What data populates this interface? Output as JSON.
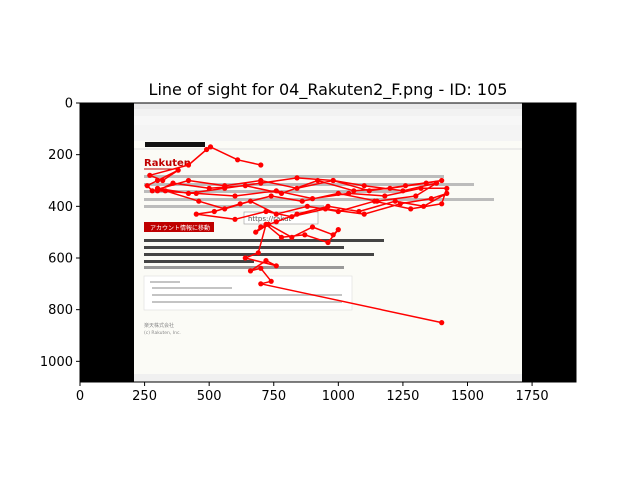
{
  "chart_data": {
    "type": "scatter",
    "title": "Line of sight for 04_Rakuten2_F.png - ID: 105",
    "xlabel": "",
    "ylabel": "",
    "xlim": [
      0,
      1920
    ],
    "ylim": [
      1080,
      0
    ],
    "x_ticks": [
      0,
      250,
      500,
      750,
      1000,
      1250,
      1500,
      1750
    ],
    "y_ticks": [
      0,
      200,
      400,
      600,
      800,
      1000
    ],
    "grid": false,
    "legend": "none",
    "colors": {
      "gaze": "#ff0000",
      "letterbox": "#000000",
      "email_bg": "#fbfbf6"
    },
    "background_image": {
      "extent_x": [
        210,
        1710
      ],
      "letterbox_color": "#000000",
      "content_lines": {
        "brand": "Rakuten",
        "button": "アカウント情報に移動",
        "link_box": "https://rakut",
        "footer_company": "楽天株式会社",
        "footer_copyright": "(c) Rakuten, Inc."
      }
    },
    "series": [
      {
        "x": [
          700,
          610,
          505,
          490,
          420,
          270,
          320,
          380,
          300,
          260,
          280,
          420,
          560,
          700,
          840,
          980,
          1120,
          1260,
          1400,
          1340,
          1200,
          1060,
          920,
          780,
          640,
          500,
          360,
          300,
          450,
          600,
          760,
          900,
          1040,
          1180,
          1320,
          1420,
          1400,
          1280,
          1140,
          1000,
          880,
          760,
          660,
          560,
          460,
          330,
          300,
          420,
          560,
          700,
          840,
          980,
          1100,
          1250,
          1380,
          1300,
          1150,
          1000,
          860,
          740,
          620,
          520,
          450,
          600,
          720,
          820,
          950,
          1100,
          1240,
          1360,
          1420,
          1330,
          1220,
          1080,
          960,
          840,
          760,
          700,
          680,
          730,
          820,
          900,
          980,
          1000,
          960,
          870,
          780,
          720,
          690,
          640,
          760,
          720,
          660,
          700,
          740,
          700,
          1400
        ],
        "y": [
          240,
          220,
          170,
          180,
          240,
          280,
          300,
          260,
          300,
          320,
          340,
          300,
          320,
          300,
          330,
          300,
          340,
          320,
          300,
          310,
          330,
          340,
          300,
          350,
          320,
          330,
          310,
          340,
          350,
          360,
          340,
          370,
          350,
          360,
          330,
          330,
          390,
          410,
          380,
          420,
          400,
          430,
          380,
          410,
          380,
          340,
          330,
          350,
          330,
          310,
          290,
          300,
          320,
          340,
          310,
          360,
          380,
          350,
          380,
          360,
          390,
          420,
          430,
          450,
          420,
          440,
          410,
          430,
          390,
          370,
          350,
          400,
          380,
          420,
          400,
          430,
          460,
          480,
          500,
          470,
          520,
          480,
          510,
          490,
          540,
          510,
          520,
          470,
          580,
          600,
          630,
          610,
          650,
          640,
          690,
          700,
          850
        ]
      }
    ]
  }
}
